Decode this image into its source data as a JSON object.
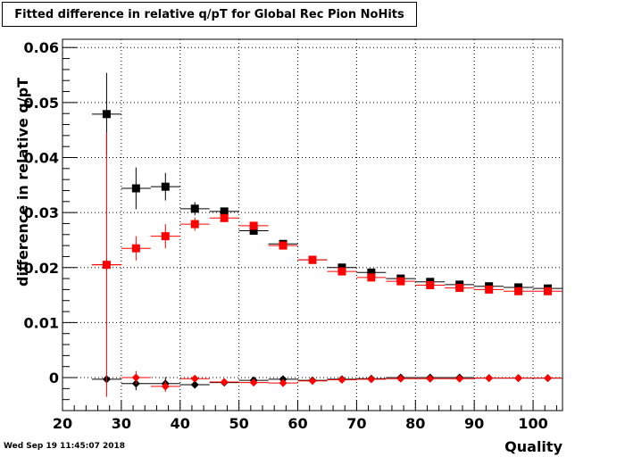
{
  "chart_data": {
    "type": "scatter",
    "title": "Fitted difference in relative q/pT for Global Rec Pion NoHits",
    "xlabel": "Quality",
    "ylabel": "difference in relative q/pT",
    "xlim": [
      20,
      105
    ],
    "ylim": [
      -0.006,
      0.0615
    ],
    "xticks": [
      20,
      30,
      40,
      50,
      60,
      70,
      80,
      90,
      100
    ],
    "yticks": [
      0,
      0.01,
      0.02,
      0.03,
      0.04,
      0.05,
      0.06
    ],
    "ytick_labels": [
      "0",
      "0.01",
      "0.02",
      "0.03",
      "0.04",
      "0.05",
      "0.06"
    ],
    "grid": true,
    "bin_half_width": 2.5,
    "series": [
      {
        "marker": "square",
        "color": "#000000",
        "x": [
          27.5,
          32.5,
          37.5,
          42.5,
          47.5,
          52.5,
          57.5,
          62.5,
          67.5,
          72.5,
          77.5,
          82.5,
          87.5,
          92.5,
          97.5,
          102.5
        ],
        "y": [
          0.0479,
          0.0344,
          0.0347,
          0.0307,
          0.0302,
          0.0267,
          0.0243,
          0.0214,
          0.02,
          0.0191,
          0.018,
          0.0174,
          0.0169,
          0.0166,
          0.0164,
          0.0162
        ],
        "yerr": [
          0.0075,
          0.0038,
          0.0025,
          0.0012,
          0.0007,
          0.0006,
          0.0005,
          0.0004,
          0.0003,
          0.0003,
          0.0003,
          0.0002,
          0.0002,
          0.0002,
          0.0002,
          0.0002
        ]
      },
      {
        "marker": "square",
        "color": "#ff0000",
        "x": [
          27.5,
          32.5,
          37.5,
          42.5,
          47.5,
          52.5,
          57.5,
          62.5,
          67.5,
          72.5,
          77.5,
          82.5,
          87.5,
          92.5,
          97.5,
          102.5
        ],
        "y": [
          0.0205,
          0.0235,
          0.0257,
          0.0279,
          0.029,
          0.0276,
          0.024,
          0.0214,
          0.0193,
          0.0182,
          0.0175,
          0.0168,
          0.0163,
          0.016,
          0.0157,
          0.0157
        ],
        "yerr": [
          0.001,
          0.0022,
          0.0022,
          0.0012,
          0.0007,
          0.0006,
          0.0005,
          0.0004,
          0.0003,
          0.0003,
          0.0003,
          0.0002,
          0.0002,
          0.0002,
          0.0002,
          0.0002
        ]
      },
      {
        "marker": "diamond",
        "color": "#000000",
        "x": [
          27.5,
          32.5,
          37.5,
          42.5,
          47.5,
          52.5,
          57.5,
          62.5,
          67.5,
          72.5,
          77.5,
          82.5,
          87.5,
          92.5,
          97.5,
          102.5
        ],
        "y": [
          -0.0003,
          -0.0011,
          -0.0011,
          -0.0013,
          -0.0009,
          -0.0005,
          -0.0003,
          -0.0005,
          -0.0003,
          -0.0002,
          0.0,
          0.0,
          0.0,
          -0.0001,
          -0.0001,
          -0.0001
        ],
        "yerr": [
          0.0005,
          0.0012,
          0.0012,
          0.0004,
          0.0003,
          0.0002,
          0.0002,
          0.0002,
          0.0002,
          0.0001,
          0.0001,
          0.0001,
          0.0001,
          0.0001,
          0.0001,
          0.0001
        ]
      },
      {
        "marker": "diamond",
        "color": "#ff0000",
        "x": [
          27.5,
          32.5,
          37.5,
          42.5,
          47.5,
          52.5,
          57.5,
          62.5,
          67.5,
          72.5,
          77.5,
          82.5,
          87.5,
          92.5,
          97.5,
          102.5
        ],
        "y": [
          0.0205,
          0.0,
          -0.0016,
          -0.0002,
          -0.0008,
          -0.0009,
          -0.001,
          -0.0006,
          -0.0004,
          -0.0003,
          -0.0002,
          -0.0002,
          -0.0002,
          -0.0001,
          -0.0001,
          -0.0001
        ],
        "yerr": [
          0.024,
          0.0012,
          0.001,
          0.0004,
          0.0003,
          0.0002,
          0.0002,
          0.0002,
          0.0002,
          0.0001,
          0.0001,
          0.0001,
          0.0001,
          0.0001,
          0.0001,
          0.0001
        ]
      }
    ]
  },
  "footer": {
    "timestamp": "Wed Sep 19 11:45:07 2018"
  }
}
